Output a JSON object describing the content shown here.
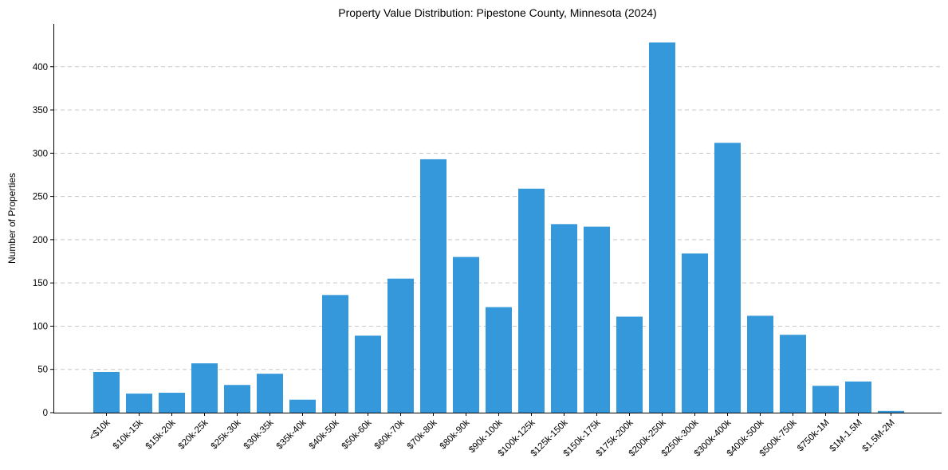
{
  "chart_data": {
    "type": "bar",
    "title": "Property Value Distribution: Pipestone County, Minnesota (2024)",
    "xlabel": "",
    "ylabel": "Number of Properties",
    "ylim": [
      0,
      450
    ],
    "yticks": [
      0,
      50,
      100,
      150,
      200,
      250,
      300,
      350,
      400
    ],
    "grid": "horizontal-dashed",
    "bar_color": "#3498db",
    "categories": [
      "<$10k",
      "$10k-15k",
      "$15k-20k",
      "$20k-25k",
      "$25k-30k",
      "$30k-35k",
      "$35k-40k",
      "$40k-50k",
      "$50k-60k",
      "$60k-70k",
      "$70k-80k",
      "$80k-90k",
      "$90k-100k",
      "$100k-125k",
      "$125k-150k",
      "$150k-175k",
      "$175k-200k",
      "$200k-250k",
      "$250k-300k",
      "$300k-400k",
      "$400k-500k",
      "$500k-750k",
      "$750k-1M",
      "$1M-1.5M",
      "$1.5M-2M"
    ],
    "values": [
      47,
      22,
      23,
      57,
      32,
      45,
      15,
      136,
      89,
      155,
      293,
      180,
      122,
      259,
      218,
      215,
      111,
      428,
      184,
      312,
      112,
      90,
      31,
      36,
      2
    ]
  }
}
